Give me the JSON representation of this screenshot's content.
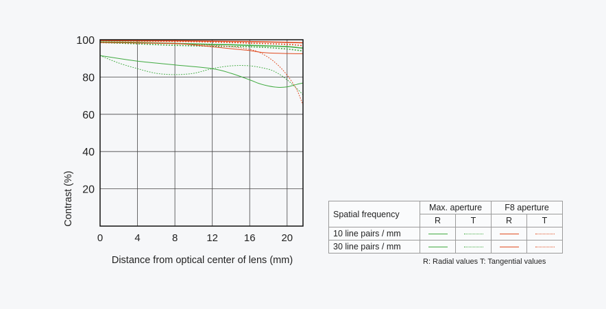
{
  "chart_data": {
    "type": "line",
    "xlabel": "Distance from optical center of lens (mm)",
    "ylabel": "Contrast (%)",
    "xlim": [
      0,
      21.7
    ],
    "ylim": [
      0,
      100
    ],
    "xticks": [
      "0",
      "4",
      "8",
      "12",
      "16",
      "20"
    ],
    "yticks": [
      "100",
      "80",
      "60",
      "40",
      "20"
    ],
    "grid": true,
    "series": [
      {
        "key": "max_10_R",
        "color": "#3faa3f",
        "dash": "solid",
        "width": 1.6,
        "x": [
          0,
          4,
          8,
          12,
          14,
          16,
          18,
          20,
          21.7
        ],
        "y": [
          98.8,
          98.5,
          98,
          97.5,
          97.3,
          97,
          96.7,
          96.3,
          95.5
        ]
      },
      {
        "key": "max_10_T",
        "color": "#3faa3f",
        "dash": "dotted",
        "width": 1.6,
        "x": [
          0,
          4,
          8,
          12,
          14,
          16,
          18,
          20,
          21.7
        ],
        "y": [
          98.5,
          97.8,
          97,
          96.5,
          96.4,
          96.2,
          95.8,
          95,
          94
        ]
      },
      {
        "key": "max_30_R",
        "color": "#3faa3f",
        "dash": "solid",
        "width": 1,
        "x": [
          0,
          4,
          8,
          12,
          14,
          16,
          17,
          18,
          19,
          20,
          21,
          21.7
        ],
        "y": [
          91.5,
          88.5,
          86.5,
          84.5,
          82,
          78.5,
          76.5,
          75.2,
          74.5,
          74.7,
          76,
          76.8
        ]
      },
      {
        "key": "max_30_T",
        "color": "#3faa3f",
        "dash": "dotted",
        "width": 1,
        "x": [
          0,
          2,
          4,
          6,
          8,
          10,
          12,
          14,
          16,
          18,
          19,
          20,
          21,
          21.7
        ],
        "y": [
          91.5,
          87.5,
          84.5,
          82,
          81.3,
          82,
          84.5,
          86,
          86,
          84.2,
          82,
          78.5,
          74,
          70.5
        ]
      },
      {
        "key": "f8_10_R",
        "color": "#e04a1e",
        "dash": "solid",
        "width": 1.6,
        "x": [
          0,
          4,
          8,
          12,
          16,
          20,
          21.7
        ],
        "y": [
          99.6,
          99.5,
          99.4,
          99.2,
          99,
          98.6,
          98.4
        ]
      },
      {
        "key": "f8_10_T",
        "color": "#e04a1e",
        "dash": "dotted",
        "width": 1.6,
        "x": [
          0,
          4,
          8,
          12,
          16,
          20,
          21.7
        ],
        "y": [
          99.5,
          99.3,
          99.1,
          98.8,
          98.2,
          97.5,
          96.8
        ]
      },
      {
        "key": "f8_30_R",
        "color": "#e04a1e",
        "dash": "solid",
        "width": 1,
        "x": [
          0,
          4,
          8,
          10,
          12,
          14,
          16,
          17,
          18,
          20,
          21.7
        ],
        "y": [
          98.5,
          98.3,
          98,
          97.2,
          96.2,
          95.2,
          94.2,
          93.4,
          92.9,
          92.6,
          92.5
        ]
      },
      {
        "key": "f8_30_T",
        "color": "#e04a1e",
        "dash": "dotted",
        "width": 1,
        "x": [
          0,
          4,
          8,
          12,
          14,
          16,
          17,
          18,
          19,
          20,
          21,
          21.7
        ],
        "y": [
          98.5,
          98.2,
          97.8,
          97,
          96.3,
          94.8,
          93.3,
          90.5,
          86.5,
          81,
          73.5,
          65
        ]
      }
    ]
  },
  "legend": {
    "header": "Spatial frequency",
    "max_aperture": "Max. aperture",
    "f8_aperture": "F8 aperture",
    "r": "R",
    "t": "T",
    "row_10": "10 line pairs / mm",
    "row_30": "30 line pairs / mm",
    "note": "R: Radial values  T: Tangential values",
    "colors": {
      "max": "#3faa3f",
      "f8": "#e04a1e"
    }
  }
}
